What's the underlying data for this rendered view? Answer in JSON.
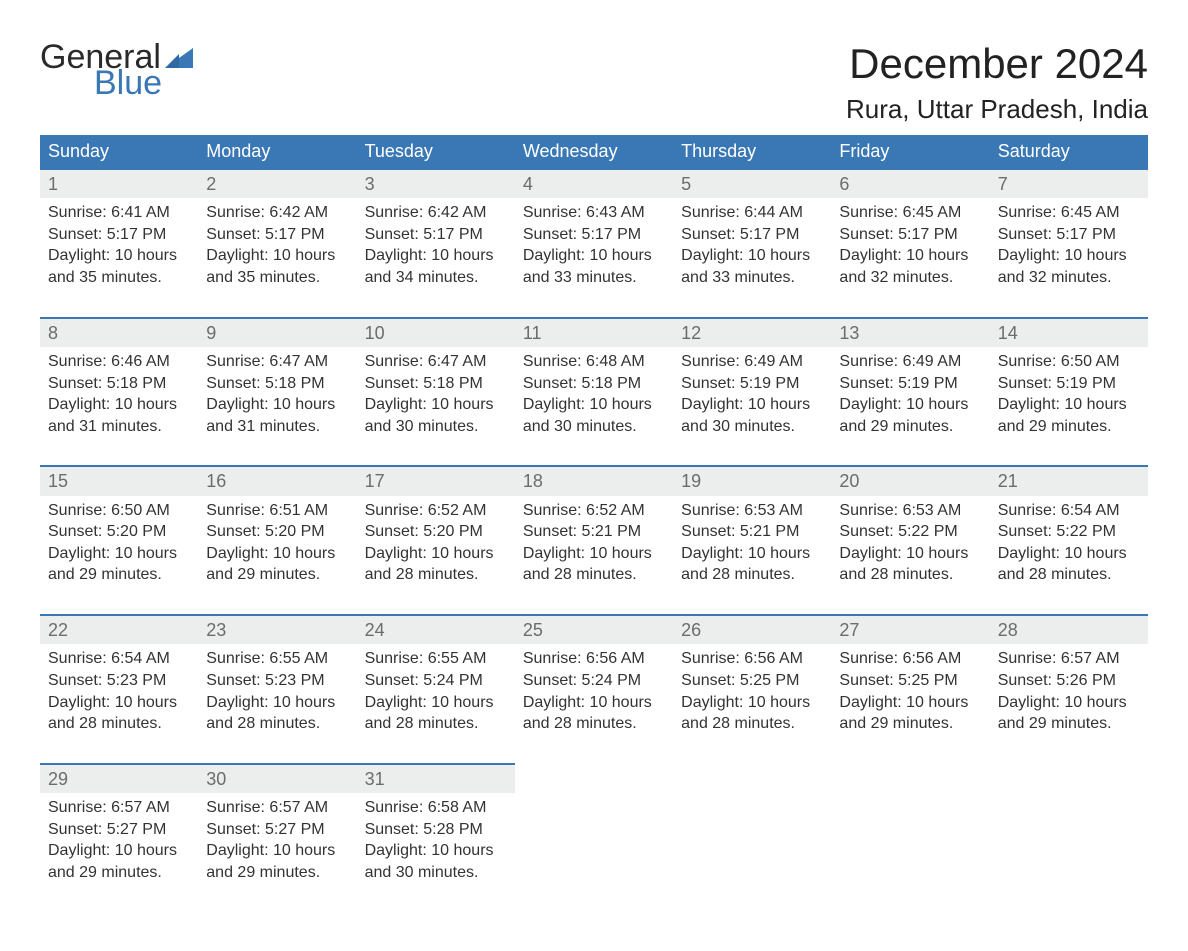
{
  "brand": {
    "word1": "General",
    "word2": "Blue",
    "word1_color": "#2a2a2a",
    "word2_color": "#3a78b5",
    "flag_color": "#3a78b5"
  },
  "title": {
    "month_year": "December 2024",
    "location": "Rura, Uttar Pradesh, India",
    "title_fontsize": 42,
    "location_fontsize": 26,
    "title_color": "#222222"
  },
  "calendar": {
    "type": "table",
    "columns": [
      "Sunday",
      "Monday",
      "Tuesday",
      "Wednesday",
      "Thursday",
      "Friday",
      "Saturday"
    ],
    "header_bg": "#3a78b5",
    "header_text_color": "#ffffff",
    "daynum_bg": "#eceded",
    "daynum_border_top_color": "#3a78b5",
    "daynum_text_color": "#6c6c6c",
    "body_text_color": "#333333",
    "background_color": "#ffffff",
    "body_fontsize": 16,
    "header_fontsize": 18,
    "weeks": [
      [
        {
          "day": "1",
          "sunrise": "Sunrise: 6:41 AM",
          "sunset": "Sunset: 5:17 PM",
          "daylight1": "Daylight: 10 hours",
          "daylight2": "and 35 minutes."
        },
        {
          "day": "2",
          "sunrise": "Sunrise: 6:42 AM",
          "sunset": "Sunset: 5:17 PM",
          "daylight1": "Daylight: 10 hours",
          "daylight2": "and 35 minutes."
        },
        {
          "day": "3",
          "sunrise": "Sunrise: 6:42 AM",
          "sunset": "Sunset: 5:17 PM",
          "daylight1": "Daylight: 10 hours",
          "daylight2": "and 34 minutes."
        },
        {
          "day": "4",
          "sunrise": "Sunrise: 6:43 AM",
          "sunset": "Sunset: 5:17 PM",
          "daylight1": "Daylight: 10 hours",
          "daylight2": "and 33 minutes."
        },
        {
          "day": "5",
          "sunrise": "Sunrise: 6:44 AM",
          "sunset": "Sunset: 5:17 PM",
          "daylight1": "Daylight: 10 hours",
          "daylight2": "and 33 minutes."
        },
        {
          "day": "6",
          "sunrise": "Sunrise: 6:45 AM",
          "sunset": "Sunset: 5:17 PM",
          "daylight1": "Daylight: 10 hours",
          "daylight2": "and 32 minutes."
        },
        {
          "day": "7",
          "sunrise": "Sunrise: 6:45 AM",
          "sunset": "Sunset: 5:17 PM",
          "daylight1": "Daylight: 10 hours",
          "daylight2": "and 32 minutes."
        }
      ],
      [
        {
          "day": "8",
          "sunrise": "Sunrise: 6:46 AM",
          "sunset": "Sunset: 5:18 PM",
          "daylight1": "Daylight: 10 hours",
          "daylight2": "and 31 minutes."
        },
        {
          "day": "9",
          "sunrise": "Sunrise: 6:47 AM",
          "sunset": "Sunset: 5:18 PM",
          "daylight1": "Daylight: 10 hours",
          "daylight2": "and 31 minutes."
        },
        {
          "day": "10",
          "sunrise": "Sunrise: 6:47 AM",
          "sunset": "Sunset: 5:18 PM",
          "daylight1": "Daylight: 10 hours",
          "daylight2": "and 30 minutes."
        },
        {
          "day": "11",
          "sunrise": "Sunrise: 6:48 AM",
          "sunset": "Sunset: 5:18 PM",
          "daylight1": "Daylight: 10 hours",
          "daylight2": "and 30 minutes."
        },
        {
          "day": "12",
          "sunrise": "Sunrise: 6:49 AM",
          "sunset": "Sunset: 5:19 PM",
          "daylight1": "Daylight: 10 hours",
          "daylight2": "and 30 minutes."
        },
        {
          "day": "13",
          "sunrise": "Sunrise: 6:49 AM",
          "sunset": "Sunset: 5:19 PM",
          "daylight1": "Daylight: 10 hours",
          "daylight2": "and 29 minutes."
        },
        {
          "day": "14",
          "sunrise": "Sunrise: 6:50 AM",
          "sunset": "Sunset: 5:19 PM",
          "daylight1": "Daylight: 10 hours",
          "daylight2": "and 29 minutes."
        }
      ],
      [
        {
          "day": "15",
          "sunrise": "Sunrise: 6:50 AM",
          "sunset": "Sunset: 5:20 PM",
          "daylight1": "Daylight: 10 hours",
          "daylight2": "and 29 minutes."
        },
        {
          "day": "16",
          "sunrise": "Sunrise: 6:51 AM",
          "sunset": "Sunset: 5:20 PM",
          "daylight1": "Daylight: 10 hours",
          "daylight2": "and 29 minutes."
        },
        {
          "day": "17",
          "sunrise": "Sunrise: 6:52 AM",
          "sunset": "Sunset: 5:20 PM",
          "daylight1": "Daylight: 10 hours",
          "daylight2": "and 28 minutes."
        },
        {
          "day": "18",
          "sunrise": "Sunrise: 6:52 AM",
          "sunset": "Sunset: 5:21 PM",
          "daylight1": "Daylight: 10 hours",
          "daylight2": "and 28 minutes."
        },
        {
          "day": "19",
          "sunrise": "Sunrise: 6:53 AM",
          "sunset": "Sunset: 5:21 PM",
          "daylight1": "Daylight: 10 hours",
          "daylight2": "and 28 minutes."
        },
        {
          "day": "20",
          "sunrise": "Sunrise: 6:53 AM",
          "sunset": "Sunset: 5:22 PM",
          "daylight1": "Daylight: 10 hours",
          "daylight2": "and 28 minutes."
        },
        {
          "day": "21",
          "sunrise": "Sunrise: 6:54 AM",
          "sunset": "Sunset: 5:22 PM",
          "daylight1": "Daylight: 10 hours",
          "daylight2": "and 28 minutes."
        }
      ],
      [
        {
          "day": "22",
          "sunrise": "Sunrise: 6:54 AM",
          "sunset": "Sunset: 5:23 PM",
          "daylight1": "Daylight: 10 hours",
          "daylight2": "and 28 minutes."
        },
        {
          "day": "23",
          "sunrise": "Sunrise: 6:55 AM",
          "sunset": "Sunset: 5:23 PM",
          "daylight1": "Daylight: 10 hours",
          "daylight2": "and 28 minutes."
        },
        {
          "day": "24",
          "sunrise": "Sunrise: 6:55 AM",
          "sunset": "Sunset: 5:24 PM",
          "daylight1": "Daylight: 10 hours",
          "daylight2": "and 28 minutes."
        },
        {
          "day": "25",
          "sunrise": "Sunrise: 6:56 AM",
          "sunset": "Sunset: 5:24 PM",
          "daylight1": "Daylight: 10 hours",
          "daylight2": "and 28 minutes."
        },
        {
          "day": "26",
          "sunrise": "Sunrise: 6:56 AM",
          "sunset": "Sunset: 5:25 PM",
          "daylight1": "Daylight: 10 hours",
          "daylight2": "and 28 minutes."
        },
        {
          "day": "27",
          "sunrise": "Sunrise: 6:56 AM",
          "sunset": "Sunset: 5:25 PM",
          "daylight1": "Daylight: 10 hours",
          "daylight2": "and 29 minutes."
        },
        {
          "day": "28",
          "sunrise": "Sunrise: 6:57 AM",
          "sunset": "Sunset: 5:26 PM",
          "daylight1": "Daylight: 10 hours",
          "daylight2": "and 29 minutes."
        }
      ],
      [
        {
          "day": "29",
          "sunrise": "Sunrise: 6:57 AM",
          "sunset": "Sunset: 5:27 PM",
          "daylight1": "Daylight: 10 hours",
          "daylight2": "and 29 minutes."
        },
        {
          "day": "30",
          "sunrise": "Sunrise: 6:57 AM",
          "sunset": "Sunset: 5:27 PM",
          "daylight1": "Daylight: 10 hours",
          "daylight2": "and 29 minutes."
        },
        {
          "day": "31",
          "sunrise": "Sunrise: 6:58 AM",
          "sunset": "Sunset: 5:28 PM",
          "daylight1": "Daylight: 10 hours",
          "daylight2": "and 30 minutes."
        },
        null,
        null,
        null,
        null
      ]
    ]
  }
}
